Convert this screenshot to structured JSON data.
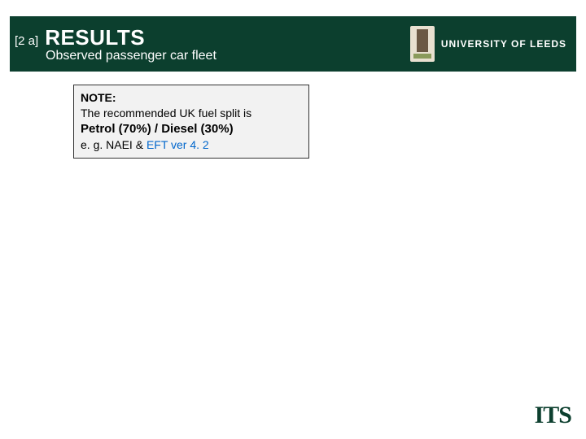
{
  "header": {
    "section_tag": "[2 a]",
    "title": "RESULTS",
    "subtitle": "Observed passenger car fleet",
    "university_name": "UNIVERSITY OF LEEDS"
  },
  "note": {
    "label": "NOTE:",
    "line1": "The recommended UK fuel split is",
    "split": "Petrol (70%) / Diesel (30%)",
    "example_prefix": "e. g. NAEI & ",
    "eft_text": "EFT ver 4. 2"
  },
  "footer": {
    "its_logo": "ITS"
  },
  "colors": {
    "header_bg": "#0c3f2e",
    "note_bg": "#f2f2f2",
    "note_border": "#333333",
    "link_color": "#0066cc",
    "its_color": "#0c3f2e"
  }
}
